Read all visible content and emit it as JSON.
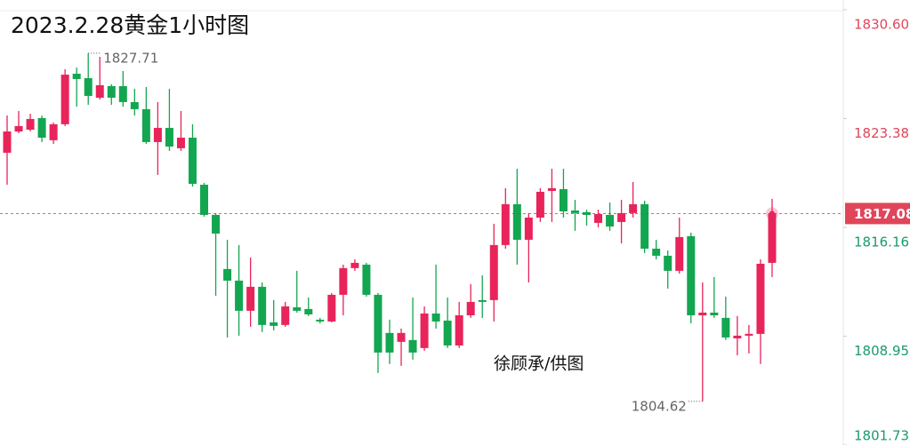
{
  "chart_data": {
    "type": "candlestick",
    "title": "2023.2.28黄金1小时图",
    "watermark": "徐顾承/供图",
    "up_color": "#e8245a",
    "down_color": "#13a650",
    "open": [
      1821.11,
      1822.52,
      1822.64,
      1823.41,
      1821.94,
      1823.0,
      1826.35,
      1826.06,
      1824.76,
      1825.53,
      1825.53,
      1824.47,
      1824.0,
      1821.82,
      1822.76,
      1821.41,
      1822.11,
      1818.99,
      1816.99,
      1813.4,
      1812.63,
      1810.63,
      1812.22,
      1809.86,
      1809.69,
      1810.86,
      1810.75,
      1810.04,
      1809.92,
      1811.69,
      1813.46,
      1813.69,
      1811.69,
      1809.16,
      1808.57,
      1808.69,
      1808.16,
      1810.45,
      1809.98,
      1808.33,
      1810.33,
      1811.34,
      1811.34,
      1814.99,
      1817.7,
      1815.34,
      1816.81,
      1818.58,
      1818.7,
      1817.28,
      1817.17,
      1816.46,
      1816.99,
      1816.52,
      1817.11,
      1817.7,
      1814.75,
      1814.28,
      1813.28,
      1815.58,
      1810.33,
      1810.51,
      1810.16,
      1808.8,
      1808.98,
      1809.1,
      1813.81
    ],
    "high": [
      1823.58,
      1823.88,
      1823.7,
      1823.58,
      1823.11,
      1826.65,
      1826.76,
      1827.71,
      1827.47,
      1825.65,
      1826.53,
      1825.35,
      1825.47,
      1824.47,
      1825.35,
      1823.88,
      1823.0,
      1819.11,
      1817.11,
      1815.34,
      1814.99,
      1814.16,
      1812.51,
      1811.34,
      1811.22,
      1813.28,
      1811.51,
      1810.16,
      1811.81,
      1813.69,
      1814.04,
      1813.81,
      1811.81,
      1810.04,
      1809.45,
      1811.51,
      1810.92,
      1813.69,
      1811.51,
      1811.22,
      1812.4,
      1812.98,
      1816.4,
      1818.76,
      1820.05,
      1817.11,
      1818.76,
      1820.05,
      1820.05,
      1817.99,
      1817.34,
      1817.34,
      1817.81,
      1817.99,
      1819.17,
      1817.93,
      1815.34,
      1814.63,
      1816.81,
      1815.81,
      1812.51,
      1812.87,
      1811.57,
      1810.28,
      1809.69,
      1814.04,
      1818.05
    ],
    "low": [
      1818.99,
      1822.41,
      1822.52,
      1821.82,
      1821.7,
      1822.88,
      1824.17,
      1824.29,
      1824.64,
      1824.29,
      1824.17,
      1823.58,
      1821.7,
      1819.64,
      1821.23,
      1821.23,
      1818.87,
      1816.87,
      1811.63,
      1808.86,
      1808.98,
      1809.57,
      1809.22,
      1809.33,
      1809.57,
      1810.51,
      1810.28,
      1809.8,
      1809.86,
      1810.33,
      1813.28,
      1811.57,
      1806.51,
      1807.1,
      1806.98,
      1807.39,
      1807.98,
      1809.45,
      1808.16,
      1808.16,
      1810.16,
      1810.16,
      1809.92,
      1814.75,
      1813.69,
      1812.51,
      1816.52,
      1816.52,
      1816.81,
      1815.93,
      1816.28,
      1816.16,
      1815.93,
      1815.1,
      1816.81,
      1814.46,
      1814.04,
      1812.1,
      1813.1,
      1809.8,
      1804.62,
      1810.16,
      1808.69,
      1807.68,
      1807.8,
      1807.1,
      1812.87
    ],
    "close": [
      1822.52,
      1822.88,
      1823.35,
      1822.11,
      1823.0,
      1826.29,
      1826.0,
      1824.88,
      1825.59,
      1824.76,
      1824.47,
      1824.0,
      1821.82,
      1822.76,
      1821.52,
      1822.11,
      1819.05,
      1816.99,
      1815.75,
      1812.63,
      1810.63,
      1812.22,
      1809.69,
      1809.63,
      1810.92,
      1810.63,
      1810.39,
      1809.92,
      1811.69,
      1813.46,
      1813.81,
      1811.69,
      1807.86,
      1807.86,
      1809.16,
      1807.86,
      1810.45,
      1809.92,
      1808.33,
      1810.33,
      1811.22,
      1811.22,
      1814.99,
      1817.7,
      1815.34,
      1816.81,
      1818.52,
      1818.76,
      1817.22,
      1817.11,
      1816.99,
      1817.05,
      1816.22,
      1817.11,
      1817.7,
      1814.75,
      1814.28,
      1813.28,
      1815.52,
      1810.33,
      1810.51,
      1810.33,
      1808.86,
      1808.98,
      1809.1,
      1813.75,
      1817.08
    ],
    "max_label": "1827.71",
    "min_label": "1804.62",
    "last_price_label": "1817.08",
    "ylim": [
      1801.73,
      1831.24
    ],
    "yticks": [
      {
        "value": 1830.6,
        "label": "1830.60"
      },
      {
        "value": 1823.38,
        "label": "1823.38"
      },
      {
        "value": 1816.16,
        "label": "1816.16"
      },
      {
        "value": 1808.95,
        "label": "1808.95"
      },
      {
        "value": 1801.73,
        "label": "1801.73"
      }
    ]
  }
}
